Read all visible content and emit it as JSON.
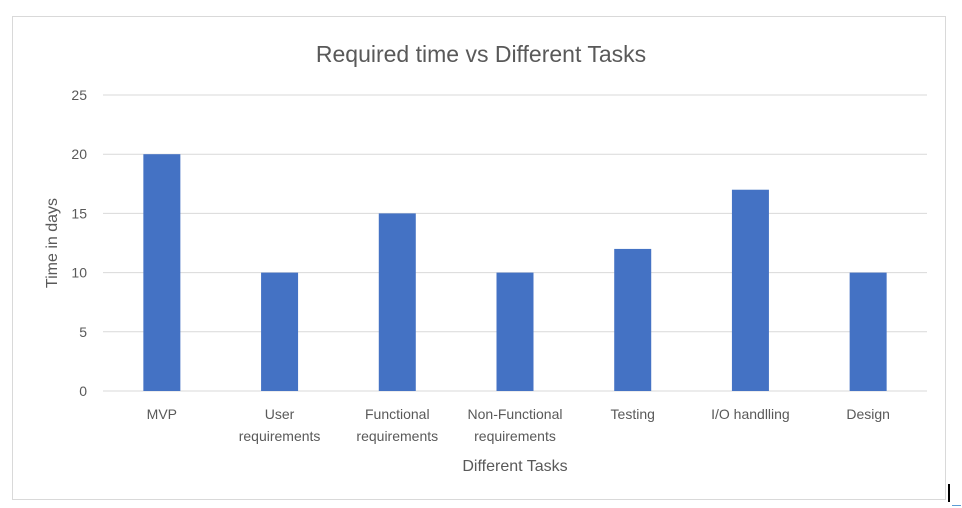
{
  "chart_data": {
    "type": "bar",
    "title": "Required time vs Different Tasks",
    "xlabel": "Different Tasks",
    "ylabel": "Time in days",
    "categories": [
      "MVP",
      "User requirements",
      "Functional requirements",
      "Non-Functional requirements",
      "Testing",
      "I/O handlling",
      "Design"
    ],
    "category_lines": [
      [
        "MVP"
      ],
      [
        "User",
        "requirements"
      ],
      [
        "Functional",
        "requirements"
      ],
      [
        "Non-Functional",
        "requirements"
      ],
      [
        "Testing"
      ],
      [
        "I/O handlling"
      ],
      [
        "Design"
      ]
    ],
    "values": [
      20,
      10,
      15,
      10,
      12,
      17,
      10
    ],
    "ylim": [
      0,
      25
    ],
    "yticks": [
      0,
      5,
      10,
      15,
      20,
      25
    ],
    "grid": true,
    "legend": "none",
    "bar_color": "#4472c4",
    "grid_color": "#d9d9d9",
    "text_color": "#595959"
  }
}
